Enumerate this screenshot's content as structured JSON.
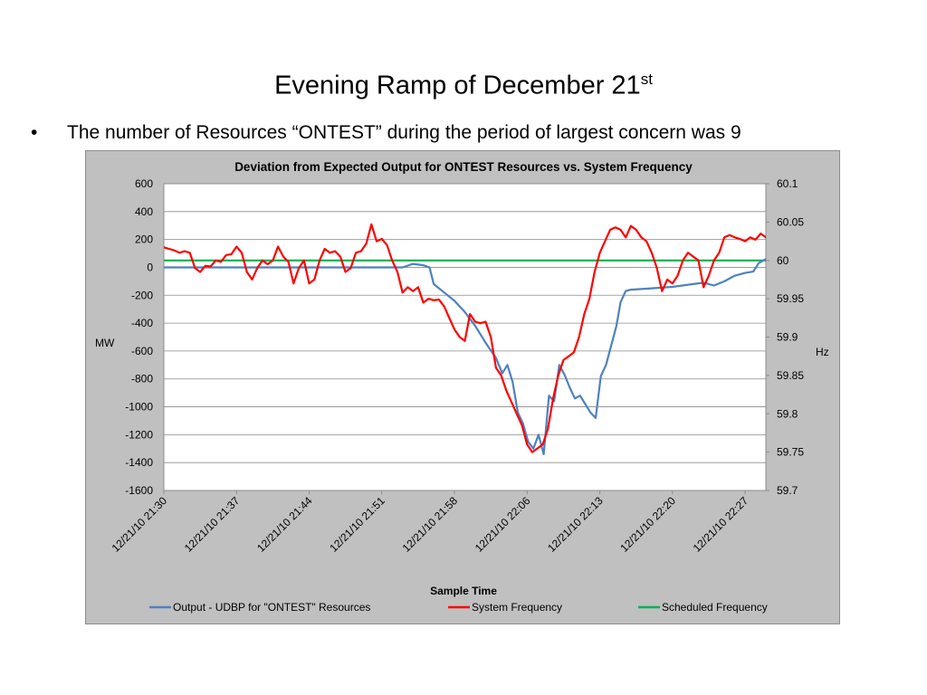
{
  "slide": {
    "title": "Evening Ramp of December 21",
    "title_sup": "st",
    "bullet": "The number of Resources “ONTEST” during the period of largest concern was 9"
  },
  "chart_data": {
    "type": "line",
    "title": "Deviation from Expected Output for ONTEST Resources vs. System Frequency",
    "xlabel": "Sample Time",
    "ylabel": "MW",
    "y2label": "Hz",
    "ylim": [
      -1600,
      600
    ],
    "y2lim": [
      59.7,
      60.1
    ],
    "yticks": [
      "600",
      "400",
      "200",
      "0",
      "-200",
      "-400",
      "-600",
      "-800",
      "-1000",
      "-1200",
      "-1400",
      "-1600"
    ],
    "y2ticks": [
      "60.1",
      "60.05",
      "60",
      "59.95",
      "59.9",
      "59.85",
      "59.8",
      "59.75",
      "59.7"
    ],
    "x_tick_labels": [
      "12/21/10 21:30",
      "12/21/10 21:37",
      "12/21/10 21:44",
      "12/21/10 21:51",
      "12/21/10 21:58",
      "12/21/10 22:06",
      "12/21/10 22:13",
      "12/21/10 22:20",
      "12/21/10 22:27"
    ],
    "x_range_minutes": [
      0,
      58
    ],
    "grid": "horizontal",
    "legend": "bottom",
    "series": [
      {
        "name": "Output - UDBP for \"ONTEST\" Resources",
        "axis": "left",
        "color": "#4f81bd",
        "points": [
          [
            0,
            0
          ],
          [
            5,
            0
          ],
          [
            10,
            0
          ],
          [
            15,
            0
          ],
          [
            20,
            0
          ],
          [
            22,
            0
          ],
          [
            23,
            0
          ],
          [
            24,
            25
          ],
          [
            25,
            15
          ],
          [
            25.6,
            0
          ],
          [
            26,
            -120
          ],
          [
            27,
            -180
          ],
          [
            28,
            -240
          ],
          [
            29,
            -320
          ],
          [
            30,
            -420
          ],
          [
            31,
            -540
          ],
          [
            32,
            -650
          ],
          [
            32.6,
            -760
          ],
          [
            33.1,
            -700
          ],
          [
            33.6,
            -820
          ],
          [
            34.1,
            -1040
          ],
          [
            34.6,
            -1120
          ],
          [
            35.1,
            -1250
          ],
          [
            35.6,
            -1300
          ],
          [
            36.1,
            -1200
          ],
          [
            36.6,
            -1340
          ],
          [
            37.1,
            -920
          ],
          [
            37.6,
            -960
          ],
          [
            38.1,
            -700
          ],
          [
            38.6,
            -770
          ],
          [
            39.1,
            -860
          ],
          [
            39.6,
            -940
          ],
          [
            40.1,
            -920
          ],
          [
            40.6,
            -980
          ],
          [
            41.1,
            -1040
          ],
          [
            41.6,
            -1080
          ],
          [
            42.1,
            -780
          ],
          [
            42.6,
            -700
          ],
          [
            43.1,
            -560
          ],
          [
            43.6,
            -420
          ],
          [
            44,
            -250
          ],
          [
            44.5,
            -170
          ],
          [
            45,
            -160
          ],
          [
            47,
            -150
          ],
          [
            49,
            -140
          ],
          [
            51,
            -120
          ],
          [
            52,
            -110
          ],
          [
            53,
            -130
          ],
          [
            54,
            -100
          ],
          [
            55,
            -60
          ],
          [
            56,
            -40
          ],
          [
            56.8,
            -30
          ],
          [
            57.3,
            30
          ],
          [
            58,
            60
          ],
          [
            59,
            90
          ],
          [
            60,
            110
          ],
          [
            60.5,
            120
          ]
        ]
      },
      {
        "name": "System Frequency",
        "axis": "right",
        "color": "#ff0000",
        "points": [
          [
            0,
            60.017
          ],
          [
            0.5,
            60.015
          ],
          [
            1,
            60.013
          ],
          [
            1.5,
            60.01
          ],
          [
            2,
            60.012
          ],
          [
            2.5,
            60.01
          ],
          [
            3,
            59.99
          ],
          [
            3.5,
            59.985
          ],
          [
            4,
            59.993
          ],
          [
            4.5,
            59.992
          ],
          [
            5,
            60
          ],
          [
            5.5,
            59.998
          ],
          [
            6,
            60.007
          ],
          [
            6.5,
            60.008
          ],
          [
            7,
            60.018
          ],
          [
            7.5,
            60.01
          ],
          [
            8,
            59.985
          ],
          [
            8.5,
            59.975
          ],
          [
            9,
            59.99
          ],
          [
            9.5,
            60
          ],
          [
            10,
            59.995
          ],
          [
            10.5,
            60
          ],
          [
            11,
            60.018
          ],
          [
            11.5,
            60.005
          ],
          [
            12,
            59.998
          ],
          [
            12.5,
            59.97
          ],
          [
            13,
            59.99
          ],
          [
            13.5,
            60
          ],
          [
            14,
            59.97
          ],
          [
            14.5,
            59.975
          ],
          [
            15,
            60
          ],
          [
            15.5,
            60.015
          ],
          [
            16,
            60.01
          ],
          [
            16.5,
            60.012
          ],
          [
            17,
            60.005
          ],
          [
            17.5,
            59.985
          ],
          [
            18,
            59.99
          ],
          [
            18.5,
            60.01
          ],
          [
            19,
            60.012
          ],
          [
            19.5,
            60.022
          ],
          [
            20,
            60.047
          ],
          [
            20.5,
            60.025
          ],
          [
            21,
            60.028
          ],
          [
            21.5,
            60.02
          ],
          [
            22,
            60
          ],
          [
            22.5,
            59.985
          ],
          [
            23,
            59.958
          ],
          [
            23.5,
            59.965
          ],
          [
            24,
            59.96
          ],
          [
            24.5,
            59.965
          ],
          [
            25,
            59.945
          ],
          [
            25.5,
            59.95
          ],
          [
            26,
            59.948
          ],
          [
            26.5,
            59.949
          ],
          [
            27,
            59.94
          ],
          [
            27.5,
            59.925
          ],
          [
            28,
            59.91
          ],
          [
            28.5,
            59.9
          ],
          [
            29,
            59.895
          ],
          [
            29.5,
            59.93
          ],
          [
            30,
            59.92
          ],
          [
            30.5,
            59.918
          ],
          [
            31,
            59.92
          ],
          [
            31.5,
            59.9
          ],
          [
            32,
            59.86
          ],
          [
            32.5,
            59.85
          ],
          [
            33,
            59.83
          ],
          [
            33.5,
            59.815
          ],
          [
            34,
            59.8
          ],
          [
            34.5,
            59.785
          ],
          [
            35,
            59.76
          ],
          [
            35.5,
            59.75
          ],
          [
            36,
            59.755
          ],
          [
            36.5,
            59.76
          ],
          [
            37,
            59.78
          ],
          [
            37.5,
            59.82
          ],
          [
            38,
            59.85
          ],
          [
            38.5,
            59.87
          ],
          [
            39,
            59.875
          ],
          [
            39.5,
            59.88
          ],
          [
            40,
            59.9
          ],
          [
            40.5,
            59.93
          ],
          [
            41,
            59.95
          ],
          [
            41.5,
            59.985
          ],
          [
            42,
            60.01
          ],
          [
            42.5,
            60.025
          ],
          [
            43,
            60.04
          ],
          [
            43.5,
            60.043
          ],
          [
            44,
            60.04
          ],
          [
            44.5,
            60.03
          ],
          [
            45,
            60.045
          ],
          [
            45.5,
            60.04
          ],
          [
            46,
            60.03
          ],
          [
            46.5,
            60.025
          ],
          [
            47,
            60.01
          ],
          [
            47.5,
            59.99
          ],
          [
            48,
            59.96
          ],
          [
            48.5,
            59.975
          ],
          [
            49,
            59.97
          ],
          [
            49.5,
            59.98
          ],
          [
            50,
            60
          ],
          [
            50.5,
            60.01
          ],
          [
            51,
            60.005
          ],
          [
            51.5,
            60
          ],
          [
            52,
            59.965
          ],
          [
            52.5,
            59.98
          ],
          [
            53,
            60
          ],
          [
            53.5,
            60.01
          ],
          [
            54,
            60.03
          ],
          [
            54.5,
            60.033
          ],
          [
            55,
            60.03
          ],
          [
            55.5,
            60.028
          ],
          [
            56,
            60.025
          ],
          [
            56.5,
            60.03
          ],
          [
            57,
            60.027
          ],
          [
            57.5,
            60.035
          ],
          [
            58,
            60.03
          ],
          [
            58.5,
            60.032
          ],
          [
            59,
            60.048
          ],
          [
            59.5,
            60.045
          ],
          [
            60,
            60.043
          ],
          [
            60.5,
            60.046
          ]
        ]
      },
      {
        "name": "Scheduled Frequency",
        "axis": "right",
        "color": "#00b050",
        "points": [
          [
            0,
            60
          ],
          [
            60.5,
            60
          ]
        ]
      }
    ]
  }
}
